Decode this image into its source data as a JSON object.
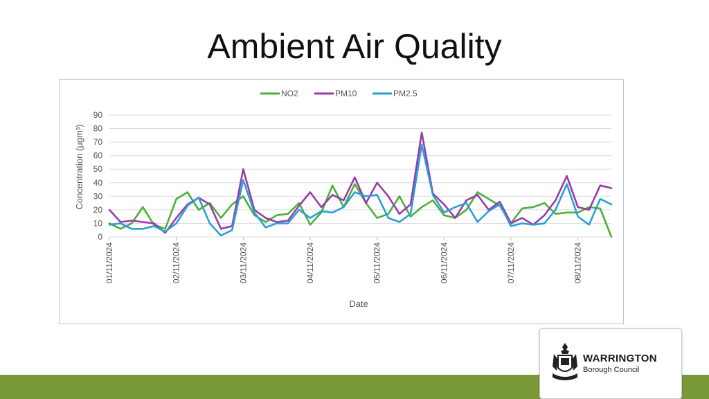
{
  "slide": {
    "title": "Ambient Air Quality",
    "logo": {
      "name": "WARRINGTON",
      "sub": "Borough Council",
      "icon": "warrington-crest-icon"
    },
    "footer_color": "#7a9a3a"
  },
  "chart_data": {
    "type": "line",
    "xlabel": "Date",
    "ylabel": "Concentration (µgm³)",
    "ylim": [
      0,
      90
    ],
    "yticks": [
      0,
      10,
      20,
      30,
      40,
      50,
      60,
      70,
      80,
      90
    ],
    "grid": true,
    "legend": "top",
    "xlim": [
      "2024-11-01",
      "2024-11-08 12:00"
    ],
    "x_tick_labels": [
      "01/11/2024",
      "02/11/2024",
      "03/11/2024",
      "04/11/2024",
      "05/11/2024",
      "06/11/2024",
      "07/11/2024",
      "08/11/2024"
    ],
    "x_tick_dates": [
      "2024-11-01",
      "2024-11-02",
      "2024-11-03",
      "2024-11-04",
      "2024-11-05",
      "2024-11-06",
      "2024-11-07",
      "2024-11-08"
    ],
    "x": [
      "2024-11-01 00:00",
      "2024-11-01 04:00",
      "2024-11-01 08:00",
      "2024-11-01 12:00",
      "2024-11-01 16:00",
      "2024-11-01 20:00",
      "2024-11-02 00:00",
      "2024-11-02 04:00",
      "2024-11-02 08:00",
      "2024-11-02 12:00",
      "2024-11-02 16:00",
      "2024-11-02 20:00",
      "2024-11-03 00:00",
      "2024-11-03 04:00",
      "2024-11-03 08:00",
      "2024-11-03 12:00",
      "2024-11-03 16:00",
      "2024-11-03 20:00",
      "2024-11-04 00:00",
      "2024-11-04 04:00",
      "2024-11-04 08:00",
      "2024-11-04 12:00",
      "2024-11-04 16:00",
      "2024-11-04 20:00",
      "2024-11-05 00:00",
      "2024-11-05 04:00",
      "2024-11-05 08:00",
      "2024-11-05 12:00",
      "2024-11-05 16:00",
      "2024-11-05 20:00",
      "2024-11-06 00:00",
      "2024-11-06 04:00",
      "2024-11-06 08:00",
      "2024-11-06 12:00",
      "2024-11-06 16:00",
      "2024-11-06 20:00",
      "2024-11-07 00:00",
      "2024-11-07 04:00",
      "2024-11-07 08:00",
      "2024-11-07 12:00",
      "2024-11-07 16:00",
      "2024-11-07 20:00",
      "2024-11-08 00:00",
      "2024-11-08 04:00",
      "2024-11-08 08:00",
      "2024-11-08 12:00"
    ],
    "series": [
      {
        "name": "NO2",
        "color": "#4caf3a",
        "values": [
          10,
          6,
          10,
          22,
          9,
          6,
          28,
          33,
          20,
          25,
          14,
          24,
          30,
          16,
          11,
          16,
          17,
          25,
          9,
          18,
          38,
          22,
          39,
          25,
          14,
          17,
          30,
          15,
          22,
          27,
          16,
          14,
          20,
          33,
          28,
          23,
          10,
          21,
          22,
          25,
          17,
          18,
          18,
          22,
          21,
          0
        ]
      },
      {
        "name": "PM10",
        "color": "#9b3aa8",
        "values": [
          20,
          11,
          12,
          11,
          10,
          3,
          14,
          24,
          29,
          24,
          6,
          8,
          50,
          20,
          14,
          11,
          12,
          23,
          33,
          22,
          31,
          27,
          44,
          25,
          40,
          30,
          17,
          24,
          77,
          32,
          24,
          14,
          27,
          31,
          20,
          26,
          10,
          14,
          9,
          16,
          27,
          45,
          22,
          20,
          38,
          36
        ]
      },
      {
        "name": "PM2.5",
        "color": "#2a9fd8",
        "values": [
          9,
          10,
          6,
          6,
          8,
          4,
          10,
          23,
          29,
          10,
          1,
          5,
          42,
          18,
          7,
          10,
          10,
          20,
          14,
          19,
          18,
          22,
          33,
          30,
          31,
          14,
          11,
          17,
          68,
          31,
          18,
          22,
          25,
          11,
          19,
          24,
          8,
          10,
          9,
          10,
          20,
          39,
          15,
          9,
          28,
          24
        ]
      }
    ]
  }
}
